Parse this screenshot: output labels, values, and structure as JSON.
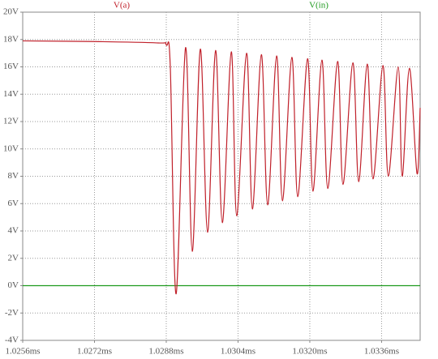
{
  "chart_data": {
    "type": "line",
    "grid": true,
    "xlim": [
      1.0256,
      1.03446
    ],
    "ylim": [
      -4,
      20
    ],
    "xticks": [
      {
        "value": 1.0256,
        "label": "1.0256ms"
      },
      {
        "value": 1.0272,
        "label": "1.0272ms"
      },
      {
        "value": 1.0288,
        "label": "1.0288ms"
      },
      {
        "value": 1.0304,
        "label": "1.0304ms"
      },
      {
        "value": 1.032,
        "label": "1.0320ms"
      },
      {
        "value": 1.0336,
        "label": "1.0336ms"
      }
    ],
    "yticks": [
      {
        "value": -4,
        "label": "-4V"
      },
      {
        "value": -2,
        "label": "-2V"
      },
      {
        "value": 0,
        "label": "0V"
      },
      {
        "value": 2,
        "label": "2V"
      },
      {
        "value": 4,
        "label": "4V"
      },
      {
        "value": 6,
        "label": "6V"
      },
      {
        "value": 8,
        "label": "8V"
      },
      {
        "value": 10,
        "label": "10V"
      },
      {
        "value": 12,
        "label": "12V"
      },
      {
        "value": 14,
        "label": "14V"
      },
      {
        "value": 16,
        "label": "16V"
      },
      {
        "value": 18,
        "label": "18V"
      },
      {
        "value": 20,
        "label": "20V"
      }
    ],
    "series": [
      {
        "name": "V(a)",
        "color": "#c0202a",
        "x": [
          1.0256,
          1.0272,
          1.02862,
          1.0288,
          1.02889,
          1.02902,
          1.02923,
          1.02938,
          1.02956,
          1.02972,
          1.0299,
          1.03005,
          1.03025,
          1.03037,
          1.03059,
          1.03072,
          1.03092,
          1.03106,
          1.03126,
          1.03139,
          1.0316,
          1.03173,
          1.03195,
          1.03207,
          1.03227,
          1.0324,
          1.03262,
          1.03274,
          1.03296,
          1.03309,
          1.03328,
          1.03341,
          1.03363,
          1.03375,
          1.03397,
          1.03406,
          1.03422,
          1.03439,
          1.03446
        ],
        "values": [
          17.9,
          17.85,
          17.75,
          17.6,
          16,
          -0.6,
          17.4,
          2.5,
          17.3,
          3.9,
          17.2,
          4.6,
          17.1,
          5.1,
          17.0,
          5.6,
          16.9,
          5.9,
          16.8,
          6.2,
          16.7,
          6.5,
          16.6,
          6.9,
          16.5,
          7.1,
          16.4,
          7.4,
          16.3,
          7.6,
          16.2,
          7.8,
          16.1,
          8.0,
          16.0,
          8.0,
          15.9,
          8.2,
          13
        ]
      },
      {
        "name": "V(in)",
        "color": "#1f9a1f",
        "x": [
          1.0256,
          1.03446
        ],
        "values": [
          0,
          0
        ]
      }
    ]
  }
}
